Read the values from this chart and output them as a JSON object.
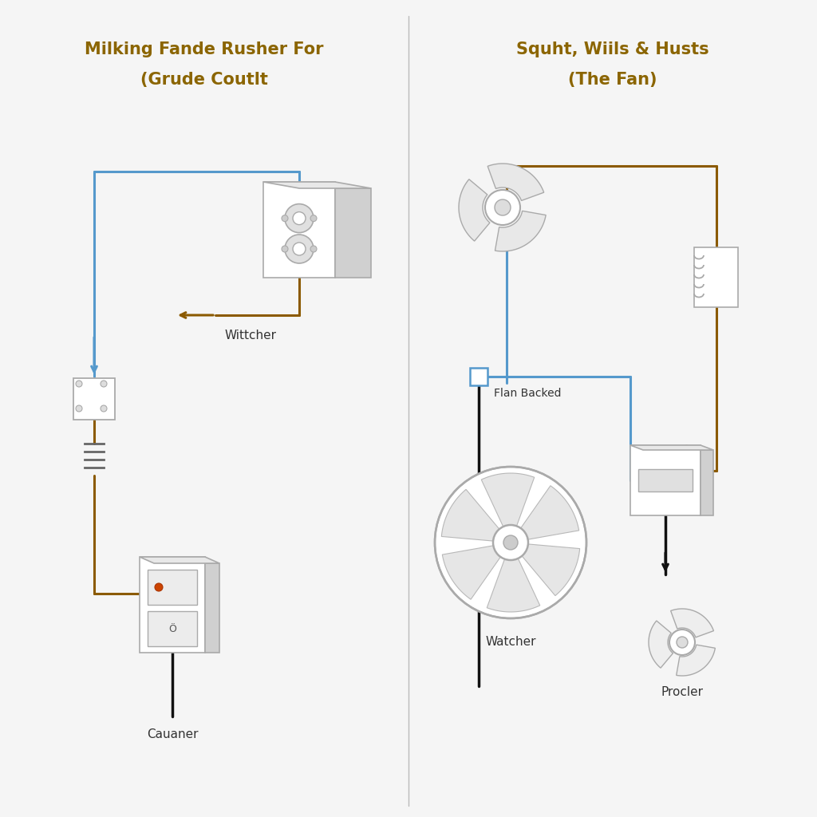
{
  "bg_color": "#f5f5f5",
  "divider_color": "#bbbbbb",
  "title_color": "#8B6500",
  "wire_blue": "#5599cc",
  "wire_brown": "#8B5A00",
  "wire_black": "#111111",
  "comp_edge": "#aaaaaa",
  "comp_fill": "#f0f0f0",
  "comp_dark": "#d0d0d0",
  "left_title_line1": "Milking Fande Rusher For",
  "left_title_line2": "(Grude Coutlt",
  "right_title_line1": "Squht, Wiils & Husts",
  "right_title_line2": "(The Fan)",
  "label_wittcher": "Wittcher",
  "label_cauaner": "Cauaner",
  "label_flan_backed": "Flan Backed",
  "label_watcher": "Watcher",
  "label_procler": "Procler"
}
